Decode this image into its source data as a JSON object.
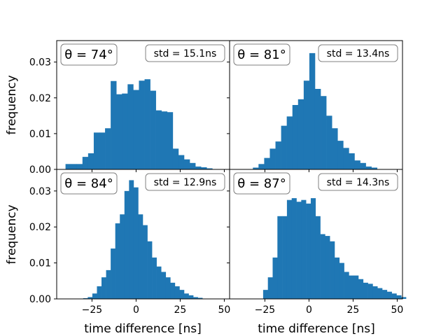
{
  "colors": {
    "bar": "#1f77b4",
    "spine": "#000000",
    "box_edge": "#808080"
  },
  "figure": {
    "xlabel": "time difference [ns]",
    "ylabel": "frequency"
  },
  "chart_data": [
    {
      "type": "bar",
      "theta_label": "θ = 74°",
      "std_label": "std = 15.1ns",
      "bin_start": -40,
      "bin_width": 3.2,
      "values": [
        0.0015,
        0.0015,
        0.0015,
        0.0035,
        0.0045,
        0.0103,
        0.0103,
        0.0115,
        0.0247,
        0.021,
        0.0212,
        0.0238,
        0.0222,
        0.0248,
        0.0252,
        0.022,
        0.0165,
        0.0162,
        0.016,
        0.0058,
        0.004,
        0.0028,
        0.0018,
        0.0008,
        0.0006,
        0.0003,
        0.0001
      ],
      "xlim": [
        -45,
        53
      ],
      "ylim": [
        0,
        0.036
      ],
      "xticks": [
        -25,
        0,
        25,
        50
      ],
      "xtick_labels": [],
      "yticks": [
        0,
        0.01,
        0.02,
        0.03
      ],
      "ytick_labels": [
        "0.00",
        "0.01",
        "0.02",
        "0.03"
      ]
    },
    {
      "type": "bar",
      "theta_label": "θ = 81°",
      "std_label": "std = 13.4ns",
      "bin_start": -35,
      "bin_width": 3.2,
      "values": [
        0.0001,
        0.0005,
        0.0015,
        0.0032,
        0.0058,
        0.0078,
        0.0122,
        0.0148,
        0.018,
        0.0196,
        0.0248,
        0.0325,
        0.0225,
        0.0205,
        0.015,
        0.0115,
        0.008,
        0.006,
        0.0045,
        0.0025,
        0.0018,
        0.0008,
        0.0005,
        0.0001
      ],
      "xlim": [
        -45,
        53
      ],
      "ylim": [
        0,
        0.036
      ],
      "xticks": [
        -25,
        0,
        25,
        50
      ],
      "xtick_labels": [],
      "yticks": [
        0,
        0.01,
        0.02,
        0.03
      ],
      "ytick_labels": []
    },
    {
      "type": "bar",
      "theta_label": "θ = 84°",
      "std_label": "std = 12.9ns",
      "bin_start": -30,
      "bin_width": 2.6,
      "values": [
        0.0002,
        0.0005,
        0.0015,
        0.0035,
        0.006,
        0.008,
        0.014,
        0.021,
        0.0235,
        0.03,
        0.033,
        0.031,
        0.0235,
        0.0205,
        0.016,
        0.0115,
        0.009,
        0.0075,
        0.006,
        0.0045,
        0.0035,
        0.0025,
        0.0015,
        0.001,
        0.0005,
        0.0003
      ],
      "xlim": [
        -45,
        53
      ],
      "ylim": [
        0,
        0.036
      ],
      "xticks": [
        -25,
        0,
        25,
        50
      ],
      "xtick_labels": [
        "−25",
        "0",
        "25",
        "50"
      ],
      "yticks": [
        0,
        0.01,
        0.02,
        0.03
      ],
      "ytick_labels": [
        "0.00",
        "0.01",
        "0.02",
        "0.03"
      ]
    },
    {
      "type": "bar",
      "theta_label": "θ = 87°",
      "std_label": "std = 14.3ns",
      "bin_start": -26,
      "bin_width": 2.7,
      "values": [
        0.0025,
        0.006,
        0.0115,
        0.023,
        0.023,
        0.0275,
        0.028,
        0.027,
        0.0275,
        0.0265,
        0.028,
        0.023,
        0.018,
        0.0175,
        0.016,
        0.0115,
        0.01,
        0.0075,
        0.0065,
        0.0065,
        0.0055,
        0.0045,
        0.0042,
        0.0035,
        0.003,
        0.0025,
        0.002,
        0.0015,
        0.001,
        0.0005
      ],
      "xlim": [
        -45,
        53
      ],
      "ylim": [
        0,
        0.036
      ],
      "xticks": [
        -25,
        0,
        25,
        50
      ],
      "xtick_labels": [
        "−25",
        "0",
        "25",
        "50"
      ],
      "yticks": [
        0,
        0.01,
        0.02,
        0.03
      ],
      "ytick_labels": []
    }
  ]
}
